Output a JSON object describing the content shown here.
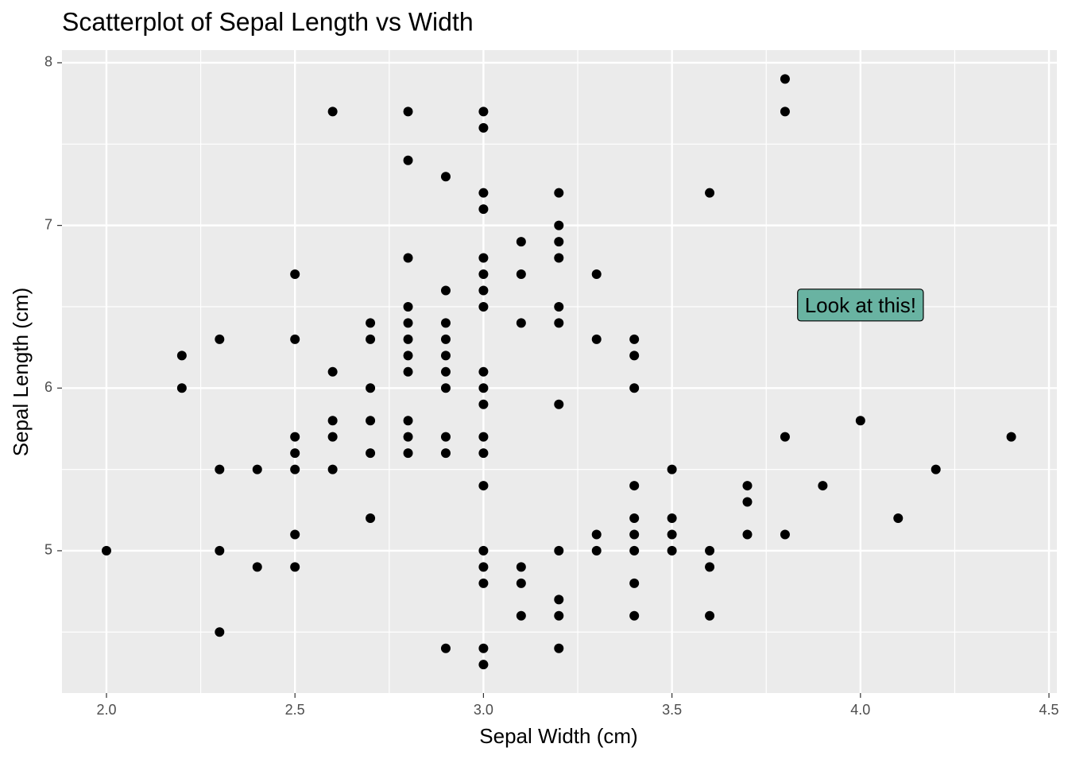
{
  "chart_data": {
    "type": "scatter",
    "title": "Scatterplot of Sepal Length vs Width",
    "x_label": "Sepal Width (cm)",
    "y_label": "Sepal Length (cm)",
    "color": "#000000",
    "x": [
      2.0,
      2.2,
      2.2,
      2.3,
      2.3,
      2.3,
      2.3,
      2.4,
      2.4,
      2.5,
      2.5,
      2.5,
      2.5,
      2.5,
      2.5,
      2.5,
      2.6,
      2.6,
      2.6,
      2.6,
      2.6,
      2.7,
      2.7,
      2.7,
      2.7,
      2.7,
      2.7,
      2.8,
      2.8,
      2.8,
      2.8,
      2.8,
      2.8,
      2.8,
      2.8,
      2.8,
      2.8,
      2.8,
      2.9,
      2.9,
      2.9,
      2.9,
      2.9,
      2.9,
      2.9,
      2.9,
      2.9,
      2.9,
      3.0,
      3.0,
      3.0,
      3.0,
      3.0,
      3.0,
      3.0,
      3.0,
      3.0,
      3.0,
      3.0,
      3.0,
      3.0,
      3.0,
      3.0,
      3.0,
      3.0,
      3.0,
      3.0,
      3.1,
      3.1,
      3.1,
      3.1,
      3.1,
      3.1,
      3.2,
      3.2,
      3.2,
      3.2,
      3.2,
      3.2,
      3.2,
      3.2,
      3.2,
      3.2,
      3.2,
      3.3,
      3.3,
      3.3,
      3.3,
      3.4,
      3.4,
      3.4,
      3.4,
      3.4,
      3.4,
      3.4,
      3.4,
      3.4,
      3.5,
      3.5,
      3.5,
      3.5,
      3.6,
      3.6,
      3.6,
      3.6,
      3.7,
      3.7,
      3.7,
      3.8,
      3.8,
      3.8,
      3.8,
      3.9,
      4.0,
      4.1,
      4.2,
      4.4
    ],
    "values": [
      5.0,
      6.2,
      6.0,
      6.3,
      5.5,
      5.0,
      4.5,
      5.5,
      4.9,
      6.7,
      6.3,
      5.7,
      5.6,
      5.5,
      5.1,
      4.9,
      7.7,
      6.1,
      5.8,
      5.7,
      5.5,
      6.4,
      6.3,
      6.0,
      5.8,
      5.6,
      5.2,
      7.7,
      7.4,
      6.8,
      6.5,
      6.4,
      6.3,
      6.2,
      6.1,
      5.8,
      5.7,
      5.6,
      7.3,
      6.6,
      6.4,
      6.3,
      6.2,
      6.1,
      6.0,
      5.7,
      5.6,
      4.4,
      7.7,
      7.6,
      7.2,
      7.1,
      6.8,
      6.7,
      6.6,
      6.5,
      6.1,
      6.0,
      5.9,
      5.7,
      5.6,
      5.4,
      5.0,
      4.9,
      4.8,
      4.4,
      4.3,
      6.9,
      6.7,
      6.4,
      4.9,
      4.8,
      4.6,
      7.2,
      7.0,
      6.9,
      6.8,
      6.5,
      6.4,
      5.9,
      5.0,
      4.7,
      4.6,
      4.4,
      6.7,
      6.3,
      5.1,
      5.0,
      6.3,
      6.2,
      6.0,
      5.4,
      5.2,
      5.1,
      5.0,
      4.8,
      4.6,
      5.5,
      5.2,
      5.1,
      5.0,
      7.2,
      5.0,
      4.9,
      4.6,
      5.4,
      5.3,
      5.1,
      7.9,
      7.7,
      5.7,
      5.1,
      5.4,
      5.8,
      5.2,
      5.5,
      5.7
    ],
    "xlim": [
      1.882,
      4.521
    ],
    "ylim": [
      4.125,
      8.078
    ],
    "xticks": [
      {
        "value": 2,
        "label": "2.0"
      },
      {
        "value": 2.5,
        "label": "2.5"
      },
      {
        "value": 3,
        "label": "3.0"
      },
      {
        "value": 3.5,
        "label": "3.5"
      },
      {
        "value": 4,
        "label": "4.0"
      },
      {
        "value": 4.5,
        "label": "4.5"
      }
    ],
    "yticks": [
      5,
      6,
      7,
      8
    ],
    "grid": true,
    "annotation": {
      "text": "Look at this!",
      "x": 4,
      "y": 6.5,
      "fill": "#69b3a2"
    }
  }
}
